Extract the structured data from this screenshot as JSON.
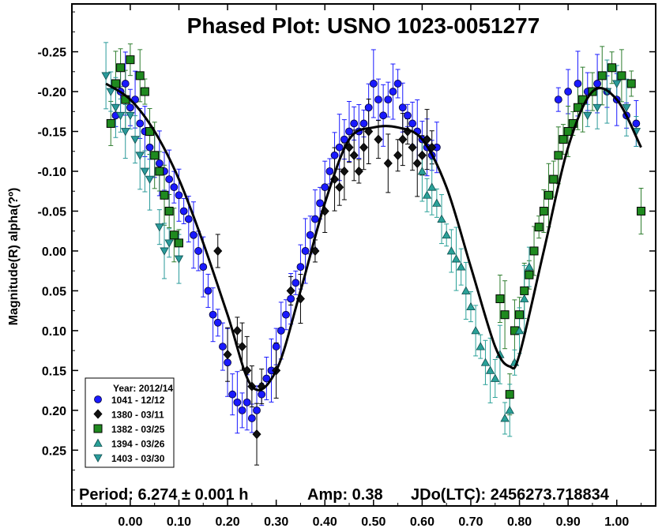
{
  "chart_data": {
    "type": "scatter",
    "title": "Phased Plot: USNO 1023-0051277",
    "xlabel": "",
    "ylabel": "Magnitude(R) alpha(?º)",
    "xlim": [
      -0.12,
      1.08
    ],
    "ylim": [
      0.32,
      -0.31
    ],
    "y_inverted": true,
    "x_tick_labels": [
      "0.00",
      "0.10",
      "0.20",
      "0.30",
      "0.40",
      "0.50",
      "0.60",
      "0.70",
      "0.80",
      "0.90",
      "1.00"
    ],
    "x_ticks": [
      0,
      0.1,
      0.2,
      0.3,
      0.4,
      0.5,
      0.6,
      0.7,
      0.8,
      0.9,
      1.0
    ],
    "y_tick_labels": [
      "-0.25",
      "-0.20",
      "-0.15",
      "-0.10",
      "-0.05",
      "0.00",
      "0.05",
      "0.10",
      "0.15",
      "0.20",
      "0.25"
    ],
    "y_ticks": [
      -0.25,
      -0.2,
      -0.15,
      -0.1,
      -0.05,
      0,
      0.05,
      0.1,
      0.15,
      0.2,
      0.25
    ],
    "legend": {
      "title": "Year: 2012/14",
      "position": "bottom-left",
      "entries": [
        {
          "label": "1041 - 12/12",
          "marker": "circle",
          "color": "#1a1aff"
        },
        {
          "label": "1380 - 03/11",
          "marker": "diamond",
          "color": "#000000"
        },
        {
          "label": "1382 - 03/25",
          "marker": "square",
          "color": "#1f8a1f"
        },
        {
          "label": "1394 - 03/26",
          "marker": "triangle-up",
          "color": "#2aa198"
        },
        {
          "label": "1403 - 03/30",
          "marker": "triangle-down",
          "color": "#2a9a9a"
        }
      ]
    },
    "annotations": {
      "period": "Period: 6.274 ± 0.001 h",
      "amp": "Amp: 0.38",
      "jdo": "JDo(LTC): 2456273.718834"
    },
    "fit_curve": {
      "x": [
        -0.05,
        0.0,
        0.05,
        0.1,
        0.15,
        0.2,
        0.25,
        0.3,
        0.35,
        0.4,
        0.45,
        0.5,
        0.55,
        0.6,
        0.65,
        0.7,
        0.75,
        0.78,
        0.8,
        0.85,
        0.9,
        0.95,
        1.0,
        1.05
      ],
      "y": [
        -0.21,
        -0.19,
        -0.15,
        -0.09,
        -0.01,
        0.08,
        0.17,
        0.15,
        0.05,
        -0.06,
        -0.14,
        -0.155,
        -0.155,
        -0.14,
        -0.08,
        0.02,
        0.12,
        0.145,
        0.13,
        0.0,
        -0.13,
        -0.2,
        -0.19,
        -0.13
      ]
    },
    "series": [
      {
        "name": "1041 - 12/12",
        "marker": "circle",
        "points": [
          [
            -0.03,
            -0.17
          ],
          [
            -0.02,
            -0.2
          ],
          [
            -0.01,
            -0.21
          ],
          [
            0.0,
            -0.18
          ],
          [
            0.01,
            -0.19
          ],
          [
            0.02,
            -0.16
          ],
          [
            0.03,
            -0.15
          ],
          [
            0.04,
            -0.13
          ],
          [
            0.05,
            -0.12
          ],
          [
            0.06,
            -0.11
          ],
          [
            0.07,
            -0.1
          ],
          [
            0.08,
            -0.09
          ],
          [
            0.09,
            -0.08
          ],
          [
            0.1,
            -0.07
          ],
          [
            0.11,
            -0.05
          ],
          [
            0.12,
            -0.04
          ],
          [
            0.13,
            -0.02
          ],
          [
            0.14,
            0.0
          ],
          [
            0.15,
            0.02
          ],
          [
            0.16,
            0.05
          ],
          [
            0.17,
            0.08
          ],
          [
            0.18,
            0.09
          ],
          [
            0.19,
            0.12
          ],
          [
            0.2,
            0.14
          ],
          [
            0.21,
            0.18
          ],
          [
            0.22,
            0.19
          ],
          [
            0.23,
            0.2
          ],
          [
            0.24,
            0.19
          ],
          [
            0.25,
            0.21
          ],
          [
            0.26,
            0.2
          ],
          [
            0.27,
            0.18
          ],
          [
            0.28,
            0.16
          ],
          [
            0.29,
            0.15
          ],
          [
            0.3,
            0.12
          ],
          [
            0.31,
            0.1
          ],
          [
            0.32,
            0.08
          ],
          [
            0.33,
            0.06
          ],
          [
            0.34,
            0.04
          ],
          [
            0.35,
            0.02
          ],
          [
            0.36,
            0.0
          ],
          [
            0.37,
            -0.02
          ],
          [
            0.38,
            -0.04
          ],
          [
            0.39,
            -0.06
          ],
          [
            0.4,
            -0.08
          ],
          [
            0.41,
            -0.1
          ],
          [
            0.42,
            -0.12
          ],
          [
            0.43,
            -0.13
          ],
          [
            0.44,
            -0.14
          ],
          [
            0.45,
            -0.15
          ],
          [
            0.46,
            -0.16
          ],
          [
            0.47,
            -0.15
          ],
          [
            0.48,
            -0.16
          ],
          [
            0.49,
            -0.18
          ],
          [
            0.5,
            -0.21
          ],
          [
            0.51,
            -0.19
          ],
          [
            0.52,
            -0.17
          ],
          [
            0.53,
            -0.19
          ],
          [
            0.54,
            -0.2
          ],
          [
            0.55,
            -0.21
          ],
          [
            0.56,
            -0.18
          ],
          [
            0.57,
            -0.17
          ],
          [
            0.58,
            -0.16
          ],
          [
            0.59,
            -0.15
          ],
          [
            0.6,
            -0.14
          ],
          [
            0.61,
            -0.13
          ],
          [
            0.62,
            -0.12
          ],
          [
            0.63,
            -0.13
          ],
          [
            0.88,
            -0.19
          ],
          [
            0.9,
            -0.2
          ],
          [
            0.92,
            -0.21
          ],
          [
            0.94,
            -0.2
          ],
          [
            0.96,
            -0.21
          ],
          [
            0.98,
            -0.2
          ],
          [
            1.0,
            -0.19
          ],
          [
            1.02,
            -0.17
          ],
          [
            1.04,
            -0.16
          ]
        ]
      },
      {
        "name": "1380 - 03/11",
        "marker": "diamond",
        "points": [
          [
            0.18,
            0.0
          ],
          [
            0.2,
            0.13
          ],
          [
            0.22,
            0.1
          ],
          [
            0.23,
            0.12
          ],
          [
            0.24,
            0.15
          ],
          [
            0.25,
            0.17
          ],
          [
            0.26,
            0.23
          ],
          [
            0.27,
            0.17
          ],
          [
            0.3,
            0.15
          ],
          [
            0.33,
            0.05
          ],
          [
            0.35,
            0.06
          ],
          [
            0.38,
            0.0
          ],
          [
            0.4,
            -0.05
          ],
          [
            0.42,
            -0.09
          ],
          [
            0.43,
            -0.08
          ],
          [
            0.44,
            -0.1
          ],
          [
            0.45,
            -0.13
          ],
          [
            0.46,
            -0.12
          ],
          [
            0.47,
            -0.1
          ],
          [
            0.48,
            -0.13
          ],
          [
            0.49,
            -0.15
          ],
          [
            0.51,
            -0.14
          ],
          [
            0.53,
            -0.11
          ],
          [
            0.55,
            -0.12
          ],
          [
            0.56,
            -0.14
          ],
          [
            0.57,
            -0.15
          ],
          [
            0.58,
            -0.13
          ],
          [
            0.59,
            -0.11
          ],
          [
            0.6,
            -0.12
          ],
          [
            0.61,
            -0.14
          ],
          [
            0.62,
            -0.13
          ]
        ]
      },
      {
        "name": "1382 - 03/25",
        "marker": "square",
        "points": [
          [
            -0.04,
            -0.16
          ],
          [
            -0.03,
            -0.21
          ],
          [
            -0.02,
            -0.23
          ],
          [
            -0.01,
            -0.19
          ],
          [
            0.0,
            -0.24
          ],
          [
            0.02,
            -0.22
          ],
          [
            0.03,
            -0.2
          ],
          [
            0.04,
            -0.15
          ],
          [
            0.05,
            -0.12
          ],
          [
            0.06,
            -0.1
          ],
          [
            0.07,
            -0.07
          ],
          [
            0.08,
            -0.05
          ],
          [
            0.09,
            -0.02
          ],
          [
            0.1,
            -0.01
          ],
          [
            0.76,
            0.06
          ],
          [
            0.77,
            0.08
          ],
          [
            0.78,
            0.18
          ],
          [
            0.79,
            0.1
          ],
          [
            0.8,
            0.08
          ],
          [
            0.81,
            0.05
          ],
          [
            0.82,
            0.03
          ],
          [
            0.83,
            0.0
          ],
          [
            0.84,
            -0.03
          ],
          [
            0.85,
            -0.05
          ],
          [
            0.86,
            -0.07
          ],
          [
            0.87,
            -0.09
          ],
          [
            0.88,
            -0.12
          ],
          [
            0.89,
            -0.14
          ],
          [
            0.9,
            -0.15
          ],
          [
            0.91,
            -0.16
          ],
          [
            0.92,
            -0.18
          ],
          [
            0.93,
            -0.19
          ],
          [
            0.95,
            -0.2
          ],
          [
            0.97,
            -0.22
          ],
          [
            0.99,
            -0.23
          ],
          [
            1.01,
            -0.22
          ],
          [
            1.03,
            -0.21
          ],
          [
            1.05,
            -0.05
          ]
        ]
      },
      {
        "name": "1394 - 03/26",
        "marker": "triangle-up",
        "points": [
          [
            0.62,
            -0.08
          ],
          [
            0.63,
            -0.06
          ],
          [
            0.64,
            -0.04
          ],
          [
            0.65,
            -0.02
          ],
          [
            0.66,
            0.0
          ],
          [
            0.67,
            0.01
          ],
          [
            0.68,
            0.02
          ],
          [
            0.69,
            0.05
          ],
          [
            0.7,
            0.07
          ],
          [
            0.71,
            0.1
          ],
          [
            0.72,
            0.12
          ],
          [
            0.73,
            0.14
          ],
          [
            0.74,
            0.15
          ],
          [
            0.75,
            0.16
          ],
          [
            0.76,
            0.13
          ],
          [
            0.77,
            0.21
          ],
          [
            0.78,
            0.2
          ],
          [
            0.79,
            0.14
          ],
          [
            0.8,
            0.1
          ],
          [
            0.81,
            0.06
          ],
          [
            0.82,
            0.02
          ],
          [
            0.6,
            -0.1
          ],
          [
            0.61,
            -0.07
          ]
        ]
      },
      {
        "name": "1403 - 03/30",
        "marker": "triangle-down",
        "points": [
          [
            -0.05,
            -0.22
          ],
          [
            -0.04,
            -0.2
          ],
          [
            -0.03,
            -0.18
          ],
          [
            -0.02,
            -0.17
          ],
          [
            -0.01,
            -0.15
          ],
          [
            0.0,
            -0.17
          ],
          [
            0.01,
            -0.14
          ],
          [
            0.02,
            -0.12
          ],
          [
            0.03,
            -0.1
          ],
          [
            0.04,
            -0.09
          ],
          [
            0.06,
            -0.03
          ],
          [
            0.07,
            0.0
          ],
          [
            0.08,
            -0.01
          ],
          [
            0.1,
            0.01
          ],
          [
            0.94,
            -0.17
          ],
          [
            0.96,
            -0.18
          ],
          [
            0.98,
            -0.2
          ],
          [
            1.0,
            -0.21
          ],
          [
            1.02,
            -0.18
          ],
          [
            1.04,
            -0.15
          ]
        ]
      }
    ]
  }
}
